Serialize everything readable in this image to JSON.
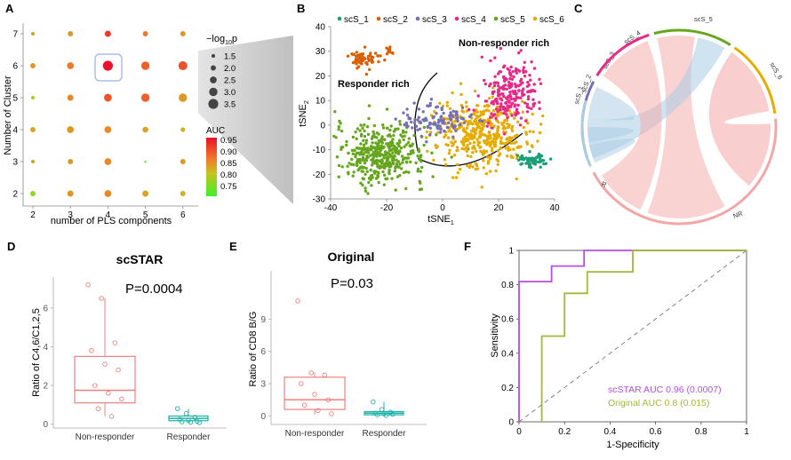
{
  "chart_data": [
    {
      "panel": "A",
      "type": "scatter",
      "xlabel": "number of PLS components",
      "ylabel": "Number of Cluster",
      "x_ticks": [
        "2",
        "3",
        "4",
        "5",
        "6"
      ],
      "y_ticks": [
        "2",
        "3",
        "4",
        "5",
        "6",
        "7"
      ],
      "size_legend": {
        "title_prefix": "−log",
        "title_sub": "10",
        "title_suffix": "p",
        "labels": [
          "1.5",
          "2.0",
          "2.5",
          "3.0",
          "3.5"
        ]
      },
      "color_legend": {
        "title": "AUC",
        "labels": [
          "0.95",
          "0.90",
          "0.85",
          "0.80",
          "0.75"
        ]
      },
      "points": [
        {
          "x": 2,
          "y": 7,
          "auc": 0.85,
          "logp": 1.5
        },
        {
          "x": 3,
          "y": 7,
          "auc": 0.86,
          "logp": 2.0
        },
        {
          "x": 4,
          "y": 7,
          "auc": 0.93,
          "logp": 2.3
        },
        {
          "x": 5,
          "y": 7,
          "auc": 0.88,
          "logp": 2.0
        },
        {
          "x": 6,
          "y": 7,
          "auc": 0.86,
          "logp": 2.0
        },
        {
          "x": 2,
          "y": 6,
          "auc": 0.86,
          "logp": 2.0
        },
        {
          "x": 3,
          "y": 6,
          "auc": 0.88,
          "logp": 2.5
        },
        {
          "x": 4,
          "y": 6,
          "auc": 0.96,
          "logp": 3.5
        },
        {
          "x": 5,
          "y": 6,
          "auc": 0.9,
          "logp": 3.0
        },
        {
          "x": 6,
          "y": 6,
          "auc": 0.91,
          "logp": 3.2
        },
        {
          "x": 2,
          "y": 5,
          "auc": 0.82,
          "logp": 1.5
        },
        {
          "x": 3,
          "y": 5,
          "auc": 0.87,
          "logp": 2.3
        },
        {
          "x": 4,
          "y": 5,
          "auc": 0.91,
          "logp": 2.8
        },
        {
          "x": 5,
          "y": 5,
          "auc": 0.9,
          "logp": 3.0
        },
        {
          "x": 6,
          "y": 5,
          "auc": 0.86,
          "logp": 3.0
        },
        {
          "x": 2,
          "y": 4,
          "auc": 0.85,
          "logp": 2.0
        },
        {
          "x": 3,
          "y": 4,
          "auc": 0.86,
          "logp": 2.5
        },
        {
          "x": 4,
          "y": 4,
          "auc": 0.87,
          "logp": 2.5
        },
        {
          "x": 5,
          "y": 4,
          "auc": 0.85,
          "logp": 2.2
        },
        {
          "x": 6,
          "y": 4,
          "auc": 0.84,
          "logp": 1.8
        },
        {
          "x": 2,
          "y": 3,
          "auc": 0.85,
          "logp": 1.5
        },
        {
          "x": 3,
          "y": 3,
          "auc": 0.86,
          "logp": 2.0
        },
        {
          "x": 4,
          "y": 3,
          "auc": 0.87,
          "logp": 2.5
        },
        {
          "x": 5,
          "y": 3,
          "auc": 0.76,
          "logp": 1.0
        },
        {
          "x": 6,
          "y": 3,
          "auc": 0.86,
          "logp": 2.0
        },
        {
          "x": 2,
          "y": 2,
          "auc": 0.79,
          "logp": 2.0
        },
        {
          "x": 3,
          "y": 2,
          "auc": 0.86,
          "logp": 2.3
        },
        {
          "x": 4,
          "y": 2,
          "auc": 0.87,
          "logp": 2.5
        },
        {
          "x": 5,
          "y": 2,
          "auc": 0.85,
          "logp": 2.3
        },
        {
          "x": 6,
          "y": 2,
          "auc": 0.84,
          "logp": 2.0
        }
      ],
      "highlight": {
        "x": 4,
        "y": 6
      }
    },
    {
      "panel": "B",
      "type": "scatter",
      "xlabel": "tSNE",
      "xlabel_sub": "1",
      "ylabel": "tSNE",
      "ylabel_sub": "2",
      "xlim": [
        -40,
        40
      ],
      "ylim": [
        -30,
        40
      ],
      "x_ticks": [
        "-40",
        "-20",
        "0",
        "20",
        "40"
      ],
      "y_ticks": [
        "-30",
        "-20",
        "-10",
        "0",
        "10",
        "20",
        "30",
        "40"
      ],
      "legend": [
        {
          "name": "scS_1",
          "color": "#1a9e77"
        },
        {
          "name": "scS_2",
          "color": "#d95f02"
        },
        {
          "name": "scS_3",
          "color": "#7570b3"
        },
        {
          "name": "scS_4",
          "color": "#e7298a"
        },
        {
          "name": "scS_5",
          "color": "#66a61e"
        },
        {
          "name": "scS_6",
          "color": "#e6ab02"
        }
      ],
      "annotations": [
        "Non-responder rich",
        "Responder rich"
      ],
      "clusters": [
        {
          "name": "scS_5",
          "cx": -22,
          "cy": -12,
          "sx": 8,
          "sy": 6,
          "n": 420
        },
        {
          "name": "scS_6",
          "cx": 14,
          "cy": -3,
          "sx": 8,
          "sy": 7,
          "n": 420
        },
        {
          "name": "scS_4",
          "cx": 24,
          "cy": 13,
          "sx": 5,
          "sy": 6,
          "n": 220
        },
        {
          "name": "scS_3",
          "cx": -2,
          "cy": 2,
          "sx": 6,
          "sy": 3,
          "n": 110
        },
        {
          "name": "scS_2",
          "cx": -28,
          "cy": 27,
          "sx": 2.5,
          "sy": 2,
          "n": 60
        },
        {
          "name": "scS_2",
          "cx": -19,
          "cy": 30,
          "sx": 0.7,
          "sy": 0.8,
          "n": 10
        },
        {
          "name": "scS_1",
          "cx": 32,
          "cy": -14,
          "sx": 2.5,
          "sy": 1.5,
          "n": 55
        }
      ]
    },
    {
      "panel": "C",
      "type": "chord",
      "sectors": [
        {
          "name": "scS_1",
          "color": "#1a9e77"
        },
        {
          "name": "scS_2",
          "color": "#d95f02"
        },
        {
          "name": "scS_3",
          "color": "#7570b3"
        },
        {
          "name": "scS_4",
          "color": "#e7298a"
        },
        {
          "name": "scS_5",
          "color": "#66a61e"
        },
        {
          "name": "scS_6",
          "color": "#e6ab02"
        },
        {
          "name": "NR",
          "color": "#f4a6a6"
        },
        {
          "name": "R",
          "color": "#a9cce3"
        }
      ]
    },
    {
      "panel": "D",
      "type": "box",
      "title": "scSTAR",
      "pvalue": "P=0.0004",
      "ylabel": "Ratio of C4,6/C1,2,5",
      "categories": [
        "Non-responder",
        "Responder"
      ],
      "ylim": [
        -0.2,
        7.6
      ],
      "y_ticks": [
        "0",
        "2",
        "4",
        "6"
      ],
      "groups": [
        {
          "name": "Non-responder",
          "color": "#f08080",
          "q1": 1.1,
          "median": 1.75,
          "q3": 3.5,
          "whislo": 0.4,
          "whishi": 6.5,
          "points": [
            7.2,
            6.5,
            4.2,
            3.8,
            3.1,
            2.8,
            2.0,
            1.6,
            1.3,
            0.8,
            0.4
          ]
        },
        {
          "name": "Responder",
          "color": "#20b2aa",
          "q1": 0.18,
          "median": 0.3,
          "q3": 0.42,
          "whislo": 0.05,
          "whishi": 0.8,
          "points": [
            0.8,
            0.55,
            0.35,
            0.25,
            0.2,
            0.15,
            0.12,
            0.1,
            0.08
          ]
        }
      ]
    },
    {
      "panel": "E",
      "type": "box",
      "title": "Original",
      "pvalue": "P=0.03",
      "ylabel": "Ratio of CD8 B/G",
      "categories": [
        "Non-responder",
        "Responder"
      ],
      "ylim": [
        -0.8,
        13.5
      ],
      "y_ticks": [
        "0",
        "3",
        "6",
        "9"
      ],
      "groups": [
        {
          "name": "Non-responder",
          "color": "#f08080",
          "q1": 0.6,
          "median": 1.5,
          "q3": 3.6,
          "whislo": 0.1,
          "whishi": 4.0,
          "points": [
            10.7,
            4.0,
            3.8,
            3.0,
            2.0,
            1.5,
            1.0,
            0.5,
            0.2
          ]
        },
        {
          "name": "Responder",
          "color": "#20b2aa",
          "q1": 0.1,
          "median": 0.25,
          "q3": 0.4,
          "whislo": 0.0,
          "whishi": 1.3,
          "points": [
            1.3,
            0.6,
            0.35,
            0.25,
            0.2,
            0.15,
            0.1,
            0.05
          ]
        }
      ]
    },
    {
      "panel": "F",
      "type": "line",
      "xlabel": "1-Specificity",
      "ylabel": "Sensitivity",
      "xlim": [
        0,
        1
      ],
      "ylim": [
        0,
        1
      ],
      "x_ticks": [
        "0",
        "0.2",
        "0.4",
        "0.6",
        "0.8",
        "1"
      ],
      "y_ticks": [
        "0",
        "0.2",
        "0.4",
        "0.6",
        "0.8",
        "1"
      ],
      "series": [
        {
          "name": "scSTAR AUC 0.96 (0.0007)",
          "color": "#b44fe0",
          "x": [
            0,
            0,
            0.143,
            0.143,
            0.286,
            0.286,
            1
          ],
          "y": [
            0,
            0.818,
            0.818,
            0.909,
            0.909,
            1,
            1
          ]
        },
        {
          "name": "Original  AUC 0.8 (0.015)",
          "color": "#a3b83a",
          "x": [
            0.1,
            0.1,
            0.2,
            0.2,
            0.3,
            0.3,
            0.5,
            0.5,
            1
          ],
          "y": [
            0,
            0.5,
            0.5,
            0.75,
            0.75,
            0.875,
            0.875,
            1,
            1
          ]
        }
      ],
      "diagonal": true
    }
  ]
}
